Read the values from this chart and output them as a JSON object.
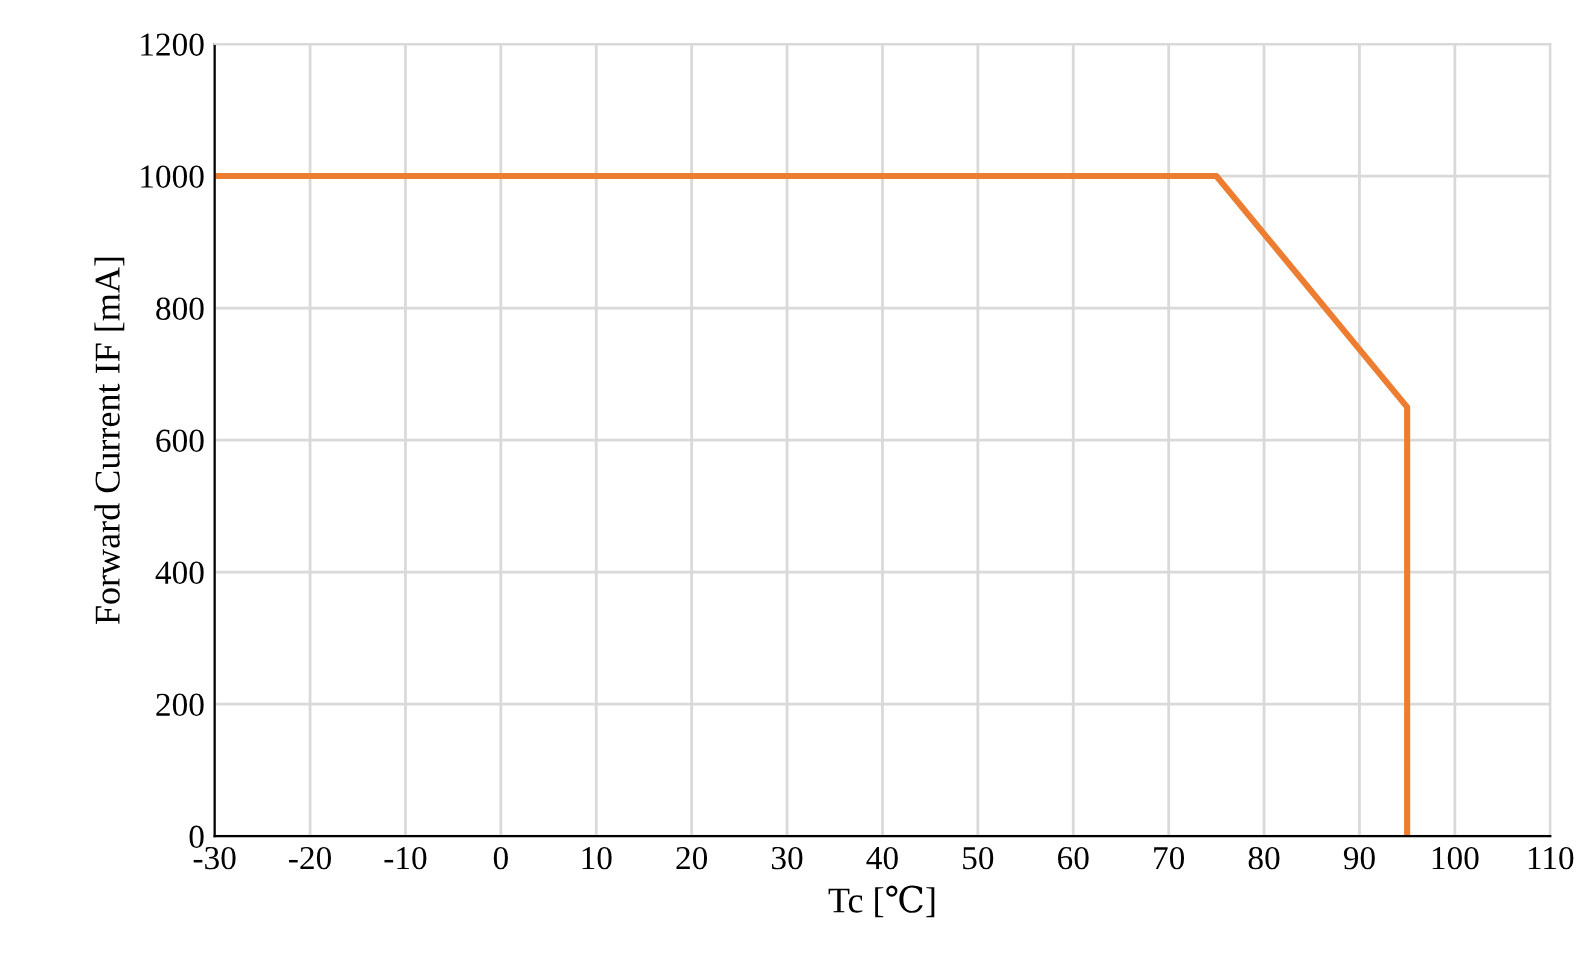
{
  "chart_data": {
    "type": "line",
    "xlabel": "Tc [℃]",
    "ylabel": "Forward Current IF [mA]",
    "series": [
      {
        "color": "#ed7d31",
        "x": [
          -30,
          75,
          95,
          95
        ],
        "values": [
          1000,
          1000,
          650,
          0
        ]
      }
    ],
    "xlim": [
      -30,
      110
    ],
    "xticks": [
      -30,
      -20,
      -10,
      0,
      10,
      20,
      30,
      40,
      50,
      60,
      70,
      80,
      90,
      100,
      110
    ],
    "ylim": [
      0,
      1200
    ],
    "yticks": [
      0,
      200,
      400,
      600,
      800,
      1000,
      1200
    ],
    "grid": true,
    "line_style": "solid",
    "marker": "none"
  }
}
